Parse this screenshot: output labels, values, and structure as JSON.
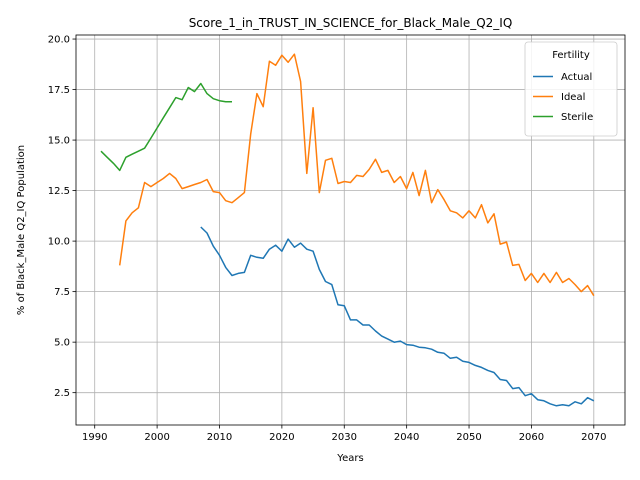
{
  "chart_data": {
    "type": "line",
    "title": "Score_1_in_TRUST_IN_SCIENCE_for_Black_Male_Q2_IQ",
    "xlabel": "Years",
    "ylabel": "% of Black_Male Q2_IQ Population",
    "xlim": [
      1987,
      2075
    ],
    "ylim": [
      0.9,
      20.2
    ],
    "xticks": [
      1990,
      2000,
      2010,
      2020,
      2030,
      2040,
      2050,
      2060,
      2070
    ],
    "yticks": [
      2.5,
      5.0,
      7.5,
      10.0,
      12.5,
      15.0,
      17.5,
      20.0
    ],
    "ytick_labels": [
      "2.5",
      "5.0",
      "7.5",
      "10.0",
      "12.5",
      "15.0",
      "17.5",
      "20.0"
    ],
    "grid": true,
    "legend": {
      "title": "Fertility",
      "placement": "top-right"
    },
    "series": [
      {
        "name": "Actual",
        "color": "#1f77b4",
        "x": [
          2007,
          2008,
          2009,
          2010,
          2011,
          2012,
          2013,
          2014,
          2015,
          2016,
          2017,
          2018,
          2019,
          2020,
          2021,
          2022,
          2023,
          2024,
          2025,
          2026,
          2027,
          2028,
          2029,
          2030,
          2031,
          2032,
          2033,
          2034,
          2035,
          2036,
          2037,
          2038,
          2039,
          2040,
          2041,
          2042,
          2043,
          2044,
          2045,
          2046,
          2047,
          2048,
          2049,
          2050,
          2051,
          2052,
          2053,
          2054,
          2055,
          2056,
          2057,
          2058,
          2059,
          2060,
          2061,
          2062,
          2063,
          2064,
          2065,
          2066,
          2067,
          2068,
          2069,
          2070
        ],
        "y": [
          10.7,
          10.4,
          9.75,
          9.3,
          8.7,
          8.3,
          8.4,
          8.45,
          9.3,
          9.2,
          9.15,
          9.6,
          9.8,
          9.5,
          10.1,
          9.7,
          9.9,
          9.6,
          9.5,
          8.6,
          8.0,
          7.85,
          6.85,
          6.8,
          6.1,
          6.1,
          5.85,
          5.85,
          5.55,
          5.3,
          5.15,
          5.0,
          5.05,
          4.88,
          4.85,
          4.75,
          4.72,
          4.65,
          4.5,
          4.45,
          4.2,
          4.25,
          4.05,
          4.0,
          3.85,
          3.75,
          3.6,
          3.5,
          3.15,
          3.1,
          2.7,
          2.75,
          2.35,
          2.45,
          2.15,
          2.1,
          1.95,
          1.85,
          1.9,
          1.85,
          2.05,
          1.95,
          2.25,
          2.1
        ]
      },
      {
        "name": "Ideal",
        "color": "#ff7f0e",
        "x": [
          1994,
          1995,
          1996,
          1997,
          1998,
          1999,
          2000,
          2001,
          2002,
          2003,
          2004,
          2005,
          2006,
          2007,
          2008,
          2009,
          2010,
          2011,
          2012,
          2013,
          2014,
          2015,
          2016,
          2017,
          2018,
          2019,
          2020,
          2021,
          2022,
          2023,
          2024,
          2025,
          2026,
          2027,
          2028,
          2029,
          2030,
          2031,
          2032,
          2033,
          2034,
          2035,
          2036,
          2037,
          2038,
          2039,
          2040,
          2041,
          2042,
          2043,
          2044,
          2045,
          2046,
          2047,
          2048,
          2049,
          2050,
          2051,
          2052,
          2053,
          2054,
          2055,
          2056,
          2057,
          2058,
          2059,
          2060,
          2061,
          2062,
          2063,
          2064,
          2065,
          2066,
          2067,
          2068,
          2069,
          2070
        ],
        "y": [
          8.8,
          11.0,
          11.4,
          11.65,
          12.9,
          12.7,
          12.9,
          13.1,
          13.35,
          13.1,
          12.6,
          12.7,
          12.8,
          12.9,
          13.05,
          12.45,
          12.4,
          12.0,
          11.9,
          12.15,
          12.4,
          15.3,
          17.3,
          16.65,
          18.9,
          18.7,
          19.2,
          18.85,
          19.25,
          17.9,
          13.35,
          16.6,
          12.4,
          14.0,
          14.1,
          12.85,
          12.95,
          12.9,
          13.25,
          13.2,
          13.55,
          14.05,
          13.4,
          13.5,
          12.9,
          13.2,
          12.6,
          13.4,
          12.25,
          13.5,
          11.9,
          12.55,
          12.05,
          11.5,
          11.4,
          11.15,
          11.5,
          11.15,
          11.8,
          10.9,
          11.35,
          9.85,
          9.95,
          8.8,
          8.85,
          8.05,
          8.4,
          7.95,
          8.4,
          7.95,
          8.45,
          7.95,
          8.15,
          7.85,
          7.5,
          7.8,
          7.3
        ]
      },
      {
        "name": "Sterile",
        "color": "#2ca02c",
        "x": [
          1991,
          1992,
          1993,
          1994,
          1995,
          1996,
          1997,
          1998,
          1999,
          2000,
          2001,
          2002,
          2003,
          2004,
          2005,
          2006,
          2007,
          2008,
          2009,
          2010,
          2011,
          2012
        ],
        "y": [
          14.45,
          14.15,
          13.85,
          13.5,
          14.15,
          14.3,
          14.45,
          14.6,
          15.1,
          15.6,
          16.1,
          16.6,
          17.1,
          17.0,
          17.6,
          17.4,
          17.8,
          17.3,
          17.05,
          16.95,
          16.9,
          16.9
        ]
      }
    ]
  }
}
